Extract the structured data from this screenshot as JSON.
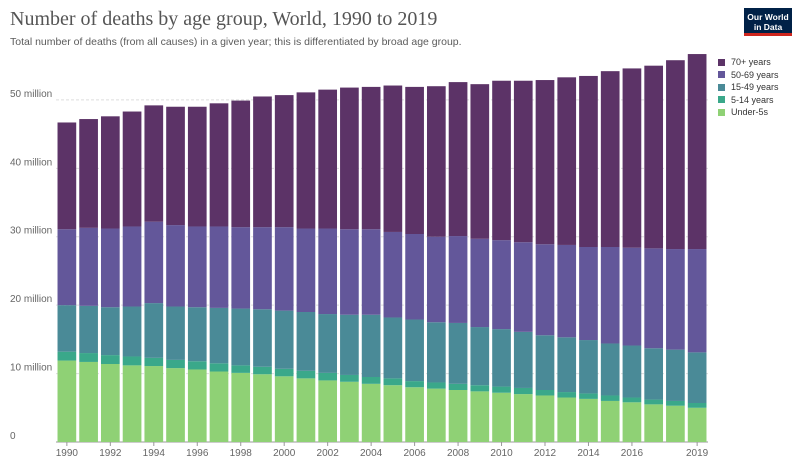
{
  "header": {
    "title": "Number of deaths by age group, World, 1990 to 2019",
    "subtitle": "Total number of deaths (from all causes) in a given year; this is differentiated by broad age group.",
    "logo_line1": "Our World",
    "logo_line2": "in Data"
  },
  "colors": {
    "70+ years": "#5c3367",
    "50-69 years": "#63579a",
    "15-49 years": "#4a8a97",
    "5-14 years": "#3aa88a",
    "Under-5s": "#8fd175",
    "logo_bg": "#002147",
    "logo_accent": "#ce261e"
  },
  "chart_data": {
    "type": "bar",
    "stacked": true,
    "x": [
      1990,
      1991,
      1992,
      1993,
      1994,
      1995,
      1996,
      1997,
      1998,
      1999,
      2000,
      2001,
      2002,
      2003,
      2004,
      2005,
      2006,
      2007,
      2008,
      2009,
      2010,
      2011,
      2012,
      2013,
      2014,
      2015,
      2016,
      2017,
      2018,
      2019
    ],
    "x_tick_labels": [
      "1990",
      "1992",
      "1994",
      "1996",
      "1998",
      "2000",
      "2002",
      "2004",
      "2006",
      "2008",
      "2010",
      "2012",
      "2014",
      "2016",
      "2019"
    ],
    "y_ticks": [
      0,
      10,
      20,
      30,
      40,
      50
    ],
    "y_tick_labels": [
      "0",
      "10 million",
      "20 million",
      "30 million",
      "40 million",
      "50 million"
    ],
    "ylim": [
      0,
      57
    ],
    "unit": "million",
    "legend_position": "right",
    "series": [
      {
        "name": "Under-5s",
        "values": [
          11.9,
          11.7,
          11.4,
          11.2,
          11.1,
          10.8,
          10.6,
          10.3,
          10.1,
          9.9,
          9.6,
          9.3,
          9.0,
          8.8,
          8.5,
          8.3,
          8.0,
          7.8,
          7.6,
          7.4,
          7.2,
          7.0,
          6.8,
          6.5,
          6.3,
          6.0,
          5.8,
          5.5,
          5.3,
          5.0
        ]
      },
      {
        "name": "5-14 years",
        "values": [
          1.3,
          1.3,
          1.3,
          1.3,
          1.2,
          1.2,
          1.2,
          1.2,
          1.1,
          1.1,
          1.1,
          1.1,
          1.1,
          1.0,
          1.0,
          1.0,
          0.9,
          0.9,
          0.9,
          0.9,
          0.9,
          0.9,
          0.8,
          0.8,
          0.8,
          0.8,
          0.7,
          0.7,
          0.7,
          0.7
        ]
      },
      {
        "name": "15-49 years",
        "values": [
          6.8,
          6.9,
          7.0,
          7.3,
          8.0,
          7.8,
          7.9,
          8.1,
          8.3,
          8.4,
          8.5,
          8.6,
          8.6,
          8.8,
          9.1,
          8.9,
          9.0,
          8.8,
          8.9,
          8.5,
          8.4,
          8.2,
          8.0,
          8.0,
          7.8,
          7.6,
          7.6,
          7.5,
          7.5,
          7.4
        ]
      },
      {
        "name": "50-69 years",
        "values": [
          11.1,
          11.4,
          11.5,
          11.7,
          11.9,
          11.9,
          11.8,
          11.9,
          11.9,
          12.0,
          12.2,
          12.2,
          12.5,
          12.5,
          12.5,
          12.5,
          12.5,
          12.5,
          12.7,
          12.9,
          13.0,
          13.1,
          13.3,
          13.5,
          13.6,
          14.1,
          14.3,
          14.6,
          14.7,
          15.1
        ]
      },
      {
        "name": "70+ years",
        "values": [
          15.6,
          15.9,
          16.4,
          16.8,
          17.0,
          17.3,
          17.5,
          18.0,
          18.5,
          19.1,
          19.3,
          19.9,
          20.3,
          20.7,
          20.8,
          21.4,
          21.5,
          22.0,
          22.5,
          22.6,
          23.3,
          23.6,
          24.0,
          24.5,
          25.0,
          25.7,
          26.2,
          26.7,
          27.6,
          28.5
        ]
      }
    ]
  }
}
